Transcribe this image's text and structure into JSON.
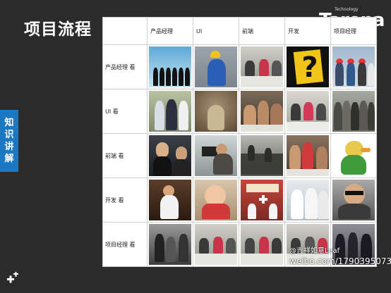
{
  "slide": {
    "title": "项目流程（",
    "logo_small": "Technology",
    "logo_text": "Tarena",
    "side_tab": [
      "知",
      "识",
      "讲",
      "解"
    ]
  },
  "table": {
    "columns": [
      "产品经理",
      "UI",
      "前端",
      "开发",
      "项目经理"
    ],
    "rows": [
      {
        "label": "产品经理 看"
      },
      {
        "label": "UI 看"
      },
      {
        "label": "前端 看"
      },
      {
        "label": "开发 看"
      },
      {
        "label": "项目经理 看"
      }
    ]
  },
  "watermark": {
    "line1": "@吉祥如意Leaf",
    "line2": "weibo.com/1790395073"
  }
}
